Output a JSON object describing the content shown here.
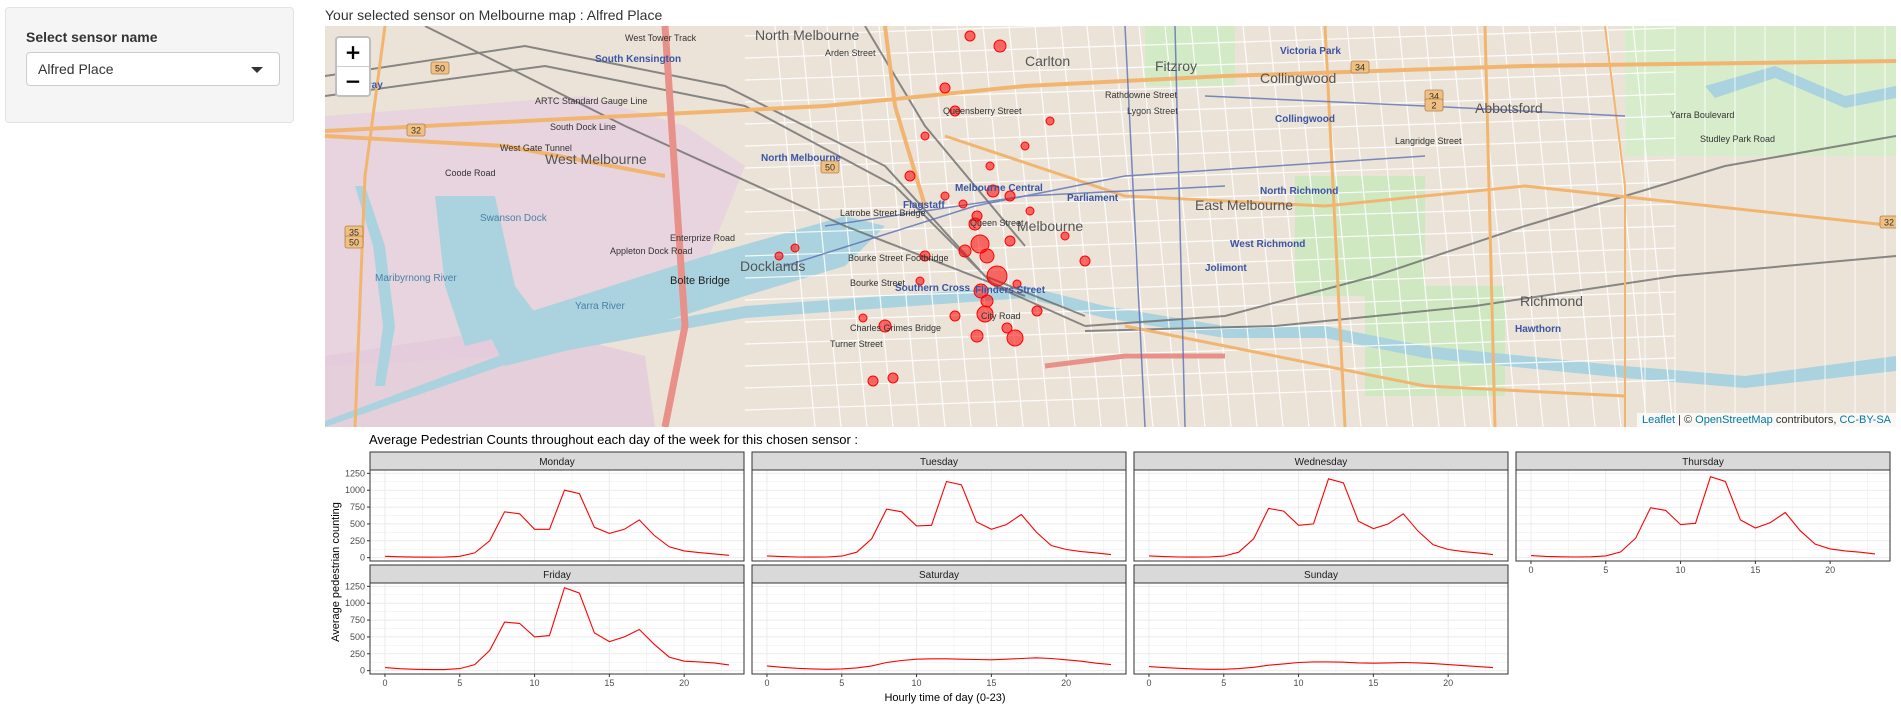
{
  "sidebar": {
    "select_label": "Select sensor name",
    "selected_sensor": "Alfred Place"
  },
  "map": {
    "caption": "Your selected sensor on Melbourne map : Alfred Place",
    "zoom_in": "+",
    "zoom_out": "−",
    "attribution": {
      "leaflet": "Leaflet",
      "separator": " | © ",
      "osm": "OpenStreetMap",
      "contributors": " contributors, ",
      "license": "CC-BY-SA"
    },
    "place_labels": [
      {
        "text": "North Melbourne",
        "size": 14,
        "color": "#555"
      },
      {
        "text": "Carlton",
        "size": 14,
        "color": "#555"
      },
      {
        "text": "Fitzroy",
        "size": 14,
        "color": "#555"
      },
      {
        "text": "Collingwood",
        "size": 14,
        "color": "#555"
      },
      {
        "text": "Abbotsford",
        "size": 14,
        "color": "#555"
      },
      {
        "text": "West Melbourne",
        "size": 14,
        "color": "#555"
      },
      {
        "text": "East Melbourne",
        "size": 14,
        "color": "#555"
      },
      {
        "text": "Melbourne",
        "size": 14,
        "color": "#555"
      },
      {
        "text": "Docklands",
        "size": 14,
        "color": "#555"
      },
      {
        "text": "Richmond",
        "size": 14,
        "color": "#555"
      },
      {
        "text": "South Kensington",
        "size": 10,
        "color": "#3a55a4"
      },
      {
        "text": "Footscray",
        "size": 10,
        "color": "#3a55a4"
      },
      {
        "text": "North Melbourne",
        "size": 10,
        "color": "#3a55a4"
      },
      {
        "text": "Flagstaff",
        "size": 10,
        "color": "#3a55a4"
      },
      {
        "text": "Melbourne Central",
        "size": 10,
        "color": "#3a55a4"
      },
      {
        "text": "Parliament",
        "size": 10,
        "color": "#3a55a4"
      },
      {
        "text": "Victoria Park",
        "size": 10,
        "color": "#3a55a4"
      },
      {
        "text": "Collingwood",
        "size": 10,
        "color": "#3a55a4"
      },
      {
        "text": "North Richmond",
        "size": 10,
        "color": "#3a55a4"
      },
      {
        "text": "West Richmond",
        "size": 10,
        "color": "#3a55a4"
      },
      {
        "text": "Jolimont",
        "size": 10,
        "color": "#3a55a4"
      },
      {
        "text": "Southern Cross",
        "size": 10,
        "color": "#3a55a4"
      },
      {
        "text": "Flinders Street",
        "size": 10,
        "color": "#3a55a4"
      },
      {
        "text": "Hawthorn",
        "size": 10,
        "color": "#3a55a4"
      },
      {
        "text": "Bolte Bridge",
        "size": 11,
        "color": "#222"
      },
      {
        "text": "Swanson Dock",
        "size": 10,
        "color": "#4a7fa8"
      },
      {
        "text": "Yarra River",
        "size": 10,
        "color": "#4a7fa8"
      },
      {
        "text": "Maribyrnong River",
        "size": 10,
        "color": "#4a7fa8"
      },
      {
        "text": "Queensberry Street",
        "size": 9,
        "color": "#333"
      },
      {
        "text": "Langridge Street",
        "size": 9,
        "color": "#333"
      },
      {
        "text": "Studley Park Road",
        "size": 9,
        "color": "#333"
      },
      {
        "text": "Yarra Boulevard",
        "size": 9,
        "color": "#333"
      },
      {
        "text": "West Gate Tunnel",
        "size": 9,
        "color": "#333"
      },
      {
        "text": "Coode Road",
        "size": 9,
        "color": "#333"
      },
      {
        "text": "Appleton Dock Road",
        "size": 9,
        "color": "#333"
      },
      {
        "text": "Enterprize Road",
        "size": 9,
        "color": "#333"
      },
      {
        "text": "Bourke Street",
        "size": 9,
        "color": "#333"
      },
      {
        "text": "City Road",
        "size": 9,
        "color": "#333"
      },
      {
        "text": "Turner Street",
        "size": 9,
        "color": "#333"
      },
      {
        "text": "West Tower Track",
        "size": 9,
        "color": "#333"
      },
      {
        "text": "South Dock Line",
        "size": 9,
        "color": "#333"
      },
      {
        "text": "ARTC Standard Gauge Line",
        "size": 9,
        "color": "#333"
      },
      {
        "text": "Arden Street",
        "size": 9,
        "color": "#333"
      },
      {
        "text": "Latrobe Street Bridge",
        "size": 9,
        "color": "#333"
      },
      {
        "text": "Bourke Street Footbridge",
        "size": 9,
        "color": "#333"
      },
      {
        "text": "Charles Grimes Bridge",
        "size": 9,
        "color": "#333"
      },
      {
        "text": "Queen Street",
        "size": 9,
        "color": "#333"
      },
      {
        "text": "Rathdowne Street",
        "size": 9,
        "color": "#333"
      },
      {
        "text": "Lygon Street",
        "size": 9,
        "color": "#333"
      }
    ],
    "road_shields": [
      "50",
      "32",
      "35",
      "50",
      "50",
      "34",
      "34",
      "2",
      "32"
    ]
  },
  "chart": {
    "title": "Average Pedestrian Counts throughout each day of the week for this chosen sensor :",
    "xlabel": "Hourly time of day (0-23)",
    "ylabel": "Average pedestrian counting",
    "x_ticks": [
      "0",
      "5",
      "10",
      "15",
      "20"
    ],
    "y_ticks": [
      "0",
      "250",
      "500",
      "750",
      "1000",
      "1250"
    ]
  },
  "chart_data": {
    "type": "line",
    "facet": "day",
    "x": [
      0,
      1,
      2,
      3,
      4,
      5,
      6,
      7,
      8,
      9,
      10,
      11,
      12,
      13,
      14,
      15,
      16,
      17,
      18,
      19,
      20,
      21,
      22,
      23
    ],
    "xlim": [
      -1,
      24
    ],
    "ylim": [
      -50,
      1300
    ],
    "line_color": "#ff0000",
    "grid": true,
    "series": [
      {
        "name": "Monday",
        "values": [
          20,
          12,
          8,
          6,
          8,
          20,
          70,
          250,
          680,
          650,
          420,
          420,
          1000,
          950,
          450,
          360,
          420,
          560,
          330,
          160,
          100,
          75,
          55,
          35
        ]
      },
      {
        "name": "Tuesday",
        "values": [
          25,
          15,
          10,
          8,
          10,
          22,
          80,
          280,
          720,
          680,
          470,
          480,
          1130,
          1080,
          530,
          420,
          490,
          640,
          380,
          180,
          120,
          90,
          70,
          45
        ]
      },
      {
        "name": "Wednesday",
        "values": [
          25,
          15,
          10,
          8,
          10,
          22,
          80,
          280,
          730,
          690,
          480,
          500,
          1170,
          1110,
          540,
          430,
          500,
          650,
          390,
          190,
          120,
          90,
          70,
          45
        ]
      },
      {
        "name": "Thursday",
        "values": [
          30,
          18,
          12,
          10,
          12,
          25,
          85,
          290,
          740,
          700,
          490,
          510,
          1200,
          1130,
          560,
          440,
          520,
          670,
          400,
          200,
          130,
          100,
          80,
          55
        ]
      },
      {
        "name": "Friday",
        "values": [
          45,
          28,
          20,
          15,
          15,
          30,
          90,
          300,
          720,
          700,
          500,
          520,
          1230,
          1150,
          560,
          430,
          500,
          610,
          390,
          200,
          140,
          130,
          115,
          85
        ]
      },
      {
        "name": "Saturday",
        "values": [
          70,
          50,
          35,
          25,
          20,
          25,
          40,
          70,
          120,
          150,
          170,
          175,
          175,
          170,
          165,
          160,
          170,
          180,
          190,
          180,
          160,
          140,
          110,
          90
        ]
      },
      {
        "name": "Sunday",
        "values": [
          60,
          45,
          35,
          25,
          20,
          20,
          30,
          50,
          80,
          100,
          120,
          130,
          130,
          125,
          115,
          110,
          115,
          120,
          115,
          105,
          90,
          75,
          60,
          45
        ]
      }
    ]
  }
}
